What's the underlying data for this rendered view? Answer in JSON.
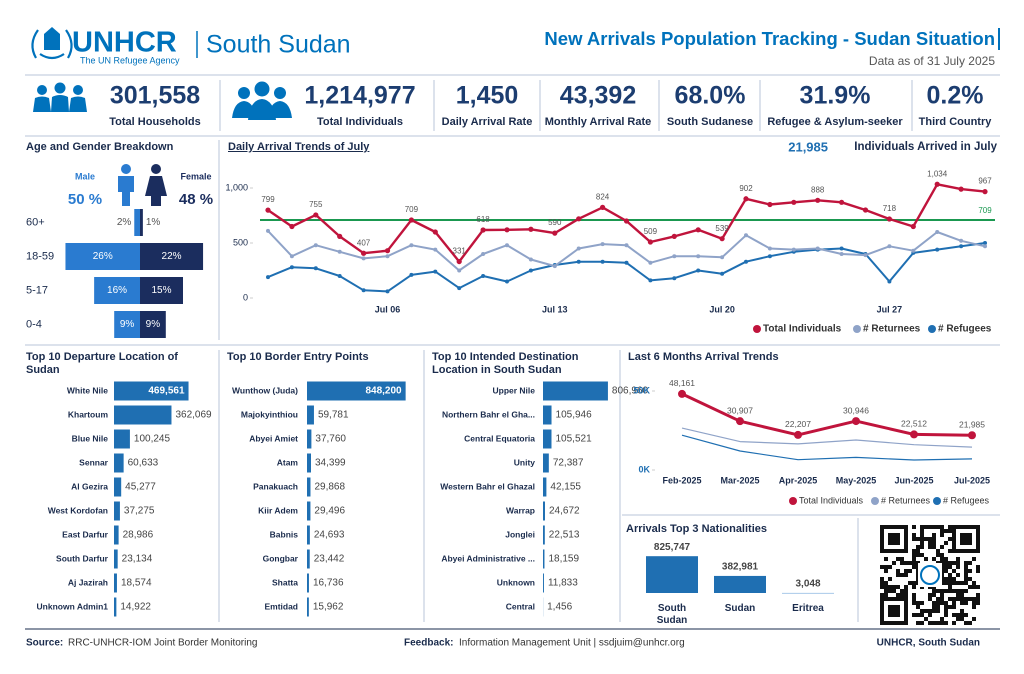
{
  "header": {
    "logo": "UNHCR",
    "logo_subtitle": "The UN Refugee Agency",
    "country": "South Sudan",
    "title": "New Arrivals Population Tracking - Sudan Situation",
    "date": "Data as of 31 July 2025"
  },
  "kpis": [
    {
      "value": "301,558",
      "label": "Total Households"
    },
    {
      "value": "1,214,977",
      "label": "Total Individuals"
    },
    {
      "value": "1,450",
      "label": "Daily Arrival Rate"
    },
    {
      "value": "43,392",
      "label": "Monthly Arrival Rate"
    },
    {
      "value": "68.0%",
      "label": "South Sudanese"
    },
    {
      "value": "31.9%",
      "label": "Refugee & Asylum-seeker"
    },
    {
      "value": "0.2%",
      "label": "Third Country"
    }
  ],
  "chart_data": [
    {
      "type": "pyramid",
      "title": "Age and Gender Breakdown",
      "categories": [
        "60+",
        "18-59",
        "5-17",
        "0-4"
      ],
      "xlim": [
        0,
        30
      ],
      "series": [
        {
          "name": "Male",
          "share": "50 %",
          "color": "#2a7bd0",
          "values": [
            2,
            26,
            16,
            9
          ],
          "value_labels": [
            "2%",
            "26%",
            "16%",
            "9%"
          ]
        },
        {
          "name": "Female",
          "share": "48 %",
          "color": "#1b2d5e",
          "values": [
            1,
            22,
            15,
            9
          ],
          "value_labels": [
            "1%",
            "22%",
            "15%",
            "9%"
          ]
        }
      ]
    },
    {
      "type": "line",
      "title": "Daily Arrival Trends of July",
      "highlight": "21,985",
      "highlight_text": "Individuals Arrived in July",
      "categories": [
        null,
        null,
        null,
        null,
        null,
        "Jul 06",
        null,
        null,
        null,
        null,
        null,
        null,
        "Jul 13",
        null,
        null,
        null,
        null,
        null,
        null,
        "Jul 20",
        null,
        null,
        null,
        null,
        null,
        null,
        "Jul 27",
        null,
        null,
        null,
        null
      ],
      "ylim": [
        0,
        1100
      ],
      "yticks": [
        0,
        500,
        {
          "value": 1000,
          "label": "1,000"
        }
      ],
      "grid": false,
      "legend": "bottom-right",
      "reference_line": {
        "value": 709,
        "color": "#1a9850"
      },
      "series": [
        {
          "name": "Total Individuals",
          "color": "#c0143c",
          "values": [
            799,
            650,
            755,
            560,
            407,
            430,
            709,
            600,
            331,
            618,
            620,
            625,
            590,
            720,
            824,
            700,
            509,
            560,
            620,
            539,
            902,
            850,
            870,
            888,
            870,
            800,
            718,
            650,
            1034,
            990,
            967
          ],
          "value_labels": [
            "799",
            null,
            "755",
            null,
            "407",
            null,
            "709",
            null,
            "331",
            "618",
            null,
            null,
            "590",
            null,
            "824",
            null,
            "509",
            null,
            null,
            "539",
            "902",
            null,
            null,
            "888",
            null,
            null,
            "718",
            null,
            "1,034",
            null,
            "967"
          ]
        },
        {
          "name": "# Returnees",
          "color": "#8fa3c8",
          "values": [
            610,
            380,
            480,
            420,
            360,
            380,
            480,
            440,
            250,
            400,
            480,
            350,
            290,
            450,
            490,
            480,
            320,
            380,
            380,
            370,
            570,
            450,
            440,
            450,
            400,
            390,
            470,
            430,
            600,
            520,
            470
          ]
        },
        {
          "name": "# Refugees",
          "color": "#1f6fb2",
          "values": [
            190,
            280,
            270,
            200,
            70,
            60,
            210,
            240,
            90,
            200,
            150,
            250,
            300,
            330,
            330,
            320,
            160,
            180,
            250,
            220,
            330,
            380,
            420,
            440,
            450,
            400,
            150,
            410,
            440,
            470,
            500
          ]
        }
      ]
    },
    {
      "type": "hbar",
      "title": "Top 10 Departure Location of Sudan",
      "color": "#1f6fb2",
      "xlim": [
        0,
        630000
      ],
      "categories": [
        "White Nile",
        "Khartoum",
        "Blue Nile",
        "Sennar",
        "Al Gezira",
        "West Kordofan",
        "East Darfur",
        "South Darfur",
        "Aj Jazirah",
        "Unknown Admin1"
      ],
      "values": [
        469561,
        362069,
        100245,
        60633,
        45277,
        37275,
        28986,
        23134,
        18574,
        14922
      ],
      "value_labels": [
        "469,561",
        "362,069",
        "100,245",
        "60,633",
        "45,277",
        "37,275",
        "28,986",
        "23,134",
        "18,574",
        "14,922"
      ]
    },
    {
      "type": "hbar",
      "title": "Top 10 Border Entry Points",
      "color": "#1f6fb2",
      "xlim": [
        0,
        860000
      ],
      "categories": [
        "Wunthow (Juda)",
        "Majokyinthiou",
        "Abyei Amiet",
        "Atam",
        "Panakuach",
        "Kiir Adem",
        "Babnis",
        "Gongbar",
        "Shatta",
        "Emtidad"
      ],
      "values": [
        848200,
        59781,
        37760,
        34399,
        29868,
        29496,
        24693,
        23442,
        16736,
        15962
      ],
      "value_labels": [
        "848,200",
        "59,781",
        "37,760",
        "34,399",
        "29,868",
        "29,496",
        "24,693",
        "23,442",
        "16,736",
        "15,962"
      ]
    },
    {
      "type": "hbar",
      "title": "Top 10 Intended Destination Location in South Sudan",
      "color": "#1f6fb2",
      "xlim": [
        0,
        870000
      ],
      "categories": [
        "Upper Nile",
        "Northern Bahr el Gha...",
        "Central Equatoria",
        "Unity",
        "Western Bahr el Ghazal",
        "Warrap",
        "Jonglei",
        "Abyei Administrative ...",
        "Unknown",
        "Central"
      ],
      "values": [
        806960,
        105946,
        105521,
        72387,
        42155,
        24672,
        22513,
        18159,
        11833,
        1456
      ],
      "value_labels": [
        "806,960",
        "105,946",
        "105,521",
        "72,387",
        "42,155",
        "24,672",
        "22,513",
        "18,159",
        "11,833",
        "1,456"
      ]
    },
    {
      "type": "line",
      "title": "Last 6 Months Arrival Trends",
      "categories": [
        "Feb-2025",
        "Mar-2025",
        "Apr-2025",
        "May-2025",
        "Jun-2025",
        "Jul-2025"
      ],
      "ylim": [
        0,
        50000
      ],
      "yticks": [
        {
          "value": 0,
          "label": "0K"
        },
        {
          "value": 50000,
          "label": "50K"
        }
      ],
      "grid": false,
      "legend": "bottom",
      "series": [
        {
          "name": "Total Individuals",
          "color": "#c0143c",
          "values": [
            48161,
            30907,
            22207,
            30946,
            22512,
            21985
          ],
          "value_labels": [
            "48,161",
            "30,907",
            "22,207",
            "30,946",
            "22,512",
            "21,985"
          ]
        },
        {
          "name": "# Returnees",
          "color": "#8fa3c8",
          "values": [
            26500,
            18000,
            16500,
            19000,
            16000,
            14500
          ]
        },
        {
          "name": "# Refugees",
          "color": "#1f6fb2",
          "values": [
            22000,
            12000,
            6500,
            8000,
            6300,
            7000
          ]
        }
      ]
    },
    {
      "type": "column",
      "title": "Arrivals Top 3 Nationalities",
      "color": "#1f6fb2",
      "ylim": [
        0,
        830000
      ],
      "categories": [
        "South Sudan",
        "Sudan",
        "Eritrea"
      ],
      "values": [
        825747,
        382981,
        3048
      ],
      "value_labels": [
        "825,747",
        "382,981",
        "3,048"
      ]
    }
  ],
  "footer": {
    "source_label": "Source:",
    "source": "RRC-UNHCR-IOM Joint Border Monitoring",
    "feedback_label": "Feedback:",
    "feedback": "Information Management Unit | ssdjuim@unhcr.org",
    "credit": "UNHCR, South Sudan"
  }
}
